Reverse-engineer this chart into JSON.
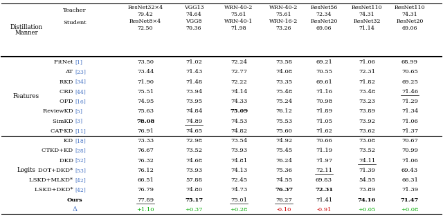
{
  "col_headers": [
    [
      "ResNet32×4",
      "79.42",
      "ResNet8×4",
      "72.50"
    ],
    [
      "VGG13",
      "74.64",
      "VGG8",
      "70.36"
    ],
    [
      "WRN-40-2",
      "75.61",
      "WRN-40-1",
      "71.98"
    ],
    [
      "WRN-40-2",
      "75.61",
      "WRN-16-2",
      "73.26"
    ],
    [
      "ResNet56",
      "72.34",
      "ResNet20",
      "69.06"
    ],
    [
      "ResNet110",
      "74.31",
      "ResNet32",
      "71.14"
    ],
    [
      "ResNet110",
      "74.31",
      "ResNet20",
      "69.06"
    ]
  ],
  "rows": [
    {
      "method": "FitNet",
      "ref": "[1]",
      "section": "Features",
      "values": [
        "73.50",
        "71.02",
        "72.24",
        "73.58",
        "69.21",
        "71.06",
        "68.99"
      ],
      "bold": [],
      "underline": []
    },
    {
      "method": "AT",
      "ref": "[23]",
      "section": "Features",
      "values": [
        "73.44",
        "71.43",
        "72.77",
        "74.08",
        "70.55",
        "72.31",
        "70.65"
      ],
      "bold": [],
      "underline": []
    },
    {
      "method": "RKD",
      "ref": "[34]",
      "section": "Features",
      "values": [
        "71.90",
        "71.48",
        "72.22",
        "73.35",
        "69.61",
        "71.82",
        "69.25"
      ],
      "bold": [],
      "underline": []
    },
    {
      "method": "CRD",
      "ref": "[44]",
      "section": "Features",
      "values": [
        "75.51",
        "73.94",
        "74.14",
        "75.48",
        "71.16",
        "73.48",
        "71.46"
      ],
      "bold": [],
      "underline": [
        6
      ]
    },
    {
      "method": "OFD",
      "ref": "[16]",
      "section": "Features",
      "values": [
        "74.95",
        "73.95",
        "74.33",
        "75.24",
        "70.98",
        "73.23",
        "71.29"
      ],
      "bold": [],
      "underline": []
    },
    {
      "method": "ReviewKD",
      "ref": "[5]",
      "section": "Features",
      "values": [
        "75.63",
        "74.84",
        "75.09",
        "76.12",
        "71.89",
        "73.89",
        "71.34"
      ],
      "bold": [
        2
      ],
      "underline": []
    },
    {
      "method": "SimKD",
      "ref": "[3]",
      "section": "Features",
      "values": [
        "78.08",
        "74.89",
        "74.53",
        "75.53",
        "71.05",
        "73.92",
        "71.06"
      ],
      "bold": [
        0
      ],
      "underline": [
        1
      ]
    },
    {
      "method": "CAT-KD",
      "ref": "[11]",
      "section": "Features",
      "values": [
        "76.91",
        "74.65",
        "74.82",
        "75.60",
        "71.62",
        "73.62",
        "71.37"
      ],
      "bold": [],
      "underline": []
    },
    {
      "method": "KD",
      "ref": "[18]",
      "section": "Logits",
      "values": [
        "73.33",
        "72.98",
        "73.54",
        "74.92",
        "70.66",
        "73.08",
        "70.67"
      ],
      "bold": [],
      "underline": []
    },
    {
      "method": "CTKD+KD",
      "ref": "[28]",
      "section": "Logits",
      "values": [
        "76.67",
        "73.52",
        "73.93",
        "75.45",
        "71.19",
        "73.52",
        "70.99"
      ],
      "bold": [],
      "underline": []
    },
    {
      "method": "DKD",
      "ref": "[52]",
      "section": "Logits",
      "values": [
        "76.32",
        "74.68",
        "74.81",
        "76.24",
        "71.97",
        "74.11",
        "71.06"
      ],
      "bold": [],
      "underline": [
        5
      ]
    },
    {
      "method": "DOT+DKD*",
      "ref": "[53]",
      "section": "Logits",
      "values": [
        "76.12",
        "73.93",
        "74.13",
        "75.36",
        "72.11",
        "71.39",
        "69.43"
      ],
      "bold": [],
      "underline": [
        4
      ]
    },
    {
      "method": "LSKD+MLKD*",
      "ref": "[42]",
      "section": "Logits",
      "values": [
        "66.51",
        "57.88",
        "72.45",
        "74.55",
        "69.83",
        "54.55",
        "66.31"
      ],
      "bold": [],
      "underline": []
    },
    {
      "method": "LSKD+DKD*",
      "ref": "[42]",
      "section": "Logits",
      "values": [
        "76.79",
        "74.80",
        "74.73",
        "76.37",
        "72.31",
        "73.89",
        "71.39"
      ],
      "bold": [
        3,
        4
      ],
      "underline": []
    },
    {
      "method": "Ours",
      "ref": "",
      "section": "Logits",
      "values": [
        "77.89",
        "75.17",
        "75.01",
        "76.27",
        "71.41",
        "74.16",
        "71.47"
      ],
      "bold": [
        1,
        5,
        6
      ],
      "underline": [
        0,
        2,
        3
      ]
    },
    {
      "method": "Δ",
      "ref": "",
      "section": "Logits",
      "values": [
        "+1.10",
        "+0.37",
        "+0.28",
        "-0.10",
        "-0.91",
        "+0.05",
        "+0.08"
      ],
      "bold": [],
      "underline": [],
      "delta": true
    }
  ],
  "delta_positive_color": "#00aa00",
  "delta_negative_color": "#cc0000",
  "ref_color": "#4472C4",
  "bg_color": "#ffffff"
}
